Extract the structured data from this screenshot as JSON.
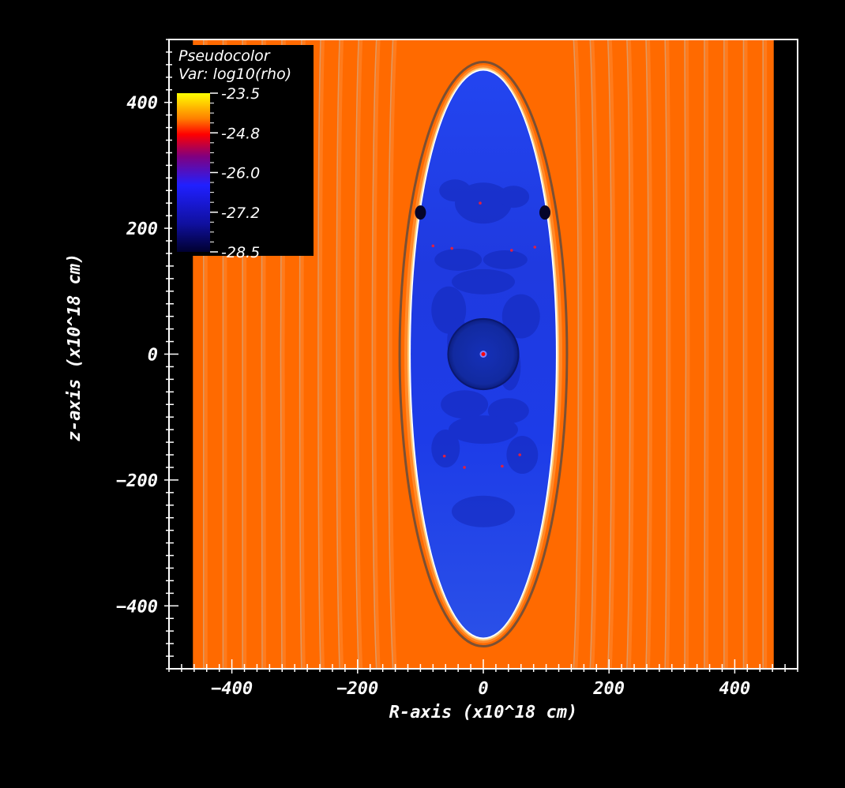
{
  "chart_data": {
    "type": "heatmap",
    "plot_type": "Pseudocolor",
    "variable": "Var: log10(rho)",
    "xlabel": "R-axis (x10^18 cm)",
    "ylabel": "z-axis (x10^18 cm)",
    "xlim": [
      -500,
      500
    ],
    "ylim": [
      -500,
      500
    ],
    "x_ticks": [
      -400,
      -200,
      0,
      200,
      400
    ],
    "y_ticks": [
      -400,
      -200,
      0,
      200,
      400
    ],
    "data_extent": {
      "r": [
        -462,
        462
      ],
      "z": [
        -500,
        500
      ]
    },
    "colorbar": {
      "min": -28.5,
      "max": -23.5,
      "ticks": [
        "-23.5",
        "-24.8",
        "-26.0",
        "-27.2",
        "-28.5"
      ],
      "colors": [
        "#ffff00",
        "#ff8000",
        "#ff0000",
        "#800080",
        "#2020ff",
        "#1010a0",
        "#000030"
      ]
    },
    "regions": [
      {
        "name": "ambient medium",
        "log10_rho": -24.3,
        "color": "#ff6a00"
      },
      {
        "name": "cavity",
        "shape": "ellipse",
        "r_semi_axis": 118,
        "z_semi_axis": 453,
        "log10_rho": -27.4,
        "color": "#1e3ce6"
      },
      {
        "name": "shell",
        "log10_rho": -23.5,
        "color": "#ffd080"
      },
      {
        "name": "central sphere",
        "radius": 56,
        "log10_rho": -27.9,
        "color": "#122aa8"
      },
      {
        "name": "center",
        "log10_rho": -24.8,
        "color": "#ff0000"
      }
    ],
    "field_lines_r": [
      -445,
      -414,
      -383,
      -352,
      -321,
      -290,
      -260,
      -230,
      -200,
      -172,
      -146,
      146,
      172,
      200,
      230,
      260,
      290,
      321,
      352,
      383,
      414,
      445
    ]
  }
}
